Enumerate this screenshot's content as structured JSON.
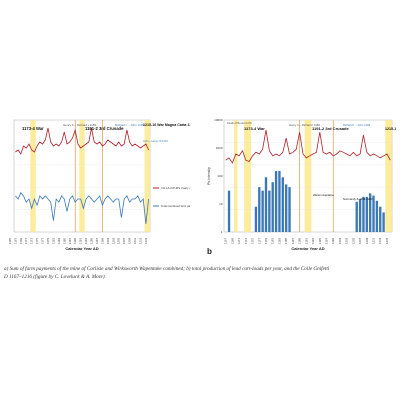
{
  "figure": {
    "panel_a_label": "",
    "panel_b_label": "b",
    "caption_line1": "a) Sum of farm payments of the mine of Carlisle and Wirksworth Wapentake combined; b) total production of lead cart-loads per year, and the Colle Gnifetti",
    "caption_line2": "D 1167–1216 (figure by C. Loveluck & A. More)."
  },
  "chart_data": [
    {
      "type": "line",
      "panel": "a",
      "xlabel": "Calendar Year AD",
      "x_tick_labels": [
        "1165",
        "1167",
        "1169",
        "1171",
        "1173",
        "1175",
        "1177",
        "1179",
        "1181",
        "1183",
        "1185",
        "1187",
        "1189",
        "1191",
        "1193",
        "1195",
        "1197",
        "1199",
        "1201",
        "1203",
        "1205",
        "1207",
        "1209",
        "1211",
        "1213",
        "1215"
      ],
      "annotations": [
        {
          "text": "1173-4 War",
          "year": 1173
        },
        {
          "text": "Henry II – Richard I 1189",
          "year": 1189
        },
        {
          "text": "1191-2 3rd Crusade",
          "year": 1191
        },
        {
          "text": "Richard I – John 1199",
          "year": 1199
        },
        {
          "text": "1215-16 War Magna Carta 1215",
          "year": 1215
        },
        {
          "text": "John – Henry III 1216",
          "year": 1216
        }
      ],
      "shaded_years": [
        1173,
        1174,
        1191,
        1192,
        1215,
        1216
      ],
      "reference_years": [
        1189,
        1199
      ],
      "series": [
        {
          "name": "CG LA-ICP-MS Yearly mean Pb Intensity (Log. scale)",
          "color": "#b0202a",
          "x": [
            1167,
            1168,
            1169,
            1170,
            1171,
            1172,
            1173,
            1174,
            1175,
            1176,
            1177,
            1178,
            1179,
            1180,
            1181,
            1182,
            1183,
            1184,
            1185,
            1186,
            1187,
            1188,
            1189,
            1190,
            1191,
            1192,
            1193,
            1194,
            1195,
            1196,
            1197,
            1198,
            1199,
            1200,
            1201,
            1202,
            1203,
            1204,
            1205,
            1206,
            1207,
            1208,
            1209,
            1210,
            1211,
            1212,
            1213,
            1214,
            1215,
            1216
          ],
          "values": [
            0.35,
            0.4,
            0.3,
            0.5,
            0.45,
            0.55,
            0.4,
            0.35,
            0.5,
            0.6,
            0.55,
            0.65,
            0.95,
            0.6,
            0.5,
            0.55,
            0.5,
            0.6,
            0.85,
            0.55,
            0.6,
            0.7,
            0.9,
            0.55,
            0.45,
            0.5,
            0.55,
            0.6,
            0.95,
            0.6,
            0.55,
            0.6,
            0.5,
            0.55,
            0.65,
            0.6,
            0.55,
            0.5,
            0.6,
            0.5,
            0.55,
            0.9,
            0.6,
            0.5,
            0.55,
            0.5,
            0.45,
            0.5,
            0.55,
            0.4
          ]
        },
        {
          "name": "Total combined farm payments for Carlisle & Wirksworth",
          "color": "#3a78b8",
          "x": [
            1167,
            1168,
            1169,
            1170,
            1171,
            1172,
            1173,
            1174,
            1175,
            1176,
            1177,
            1178,
            1179,
            1180,
            1181,
            1182,
            1183,
            1184,
            1185,
            1186,
            1187,
            1188,
            1189,
            1190,
            1191,
            1192,
            1193,
            1194,
            1195,
            1196,
            1197,
            1198,
            1199,
            1200,
            1201,
            1202,
            1203,
            1204,
            1205,
            1206,
            1207,
            1208,
            1209,
            1210,
            1211,
            1212,
            1213,
            1214,
            1215,
            1216
          ],
          "values": [
            0.55,
            0.5,
            0.6,
            0.55,
            0.45,
            0.5,
            0.35,
            0.5,
            0.4,
            0.55,
            0.5,
            0.55,
            0.5,
            0.45,
            0.15,
            0.5,
            0.45,
            0.55,
            0.5,
            0.3,
            0.5,
            0.55,
            0.45,
            0.5,
            0.5,
            0.35,
            0.5,
            0.55,
            0.5,
            0.45,
            0.5,
            0.55,
            0.4,
            0.5,
            0.55,
            0.5,
            0.45,
            0.5,
            0.5,
            0.2,
            0.5,
            0.55,
            0.45,
            0.5,
            0.5,
            0.55,
            0.45,
            0.5,
            0.1,
            0.5
          ]
        }
      ],
      "legend_position": "right"
    },
    {
      "type": "bar",
      "panel": "b",
      "xlabel": "Calendar Year AD",
      "ylabel": "Pb Intensity",
      "y_scale": "log",
      "ylim": [
        1,
        10000
      ],
      "y_tick_labels": [
        "10000",
        "1000",
        "100",
        "10",
        "1"
      ],
      "x_tick_labels": [
        "1167",
        "1169",
        "1171",
        "1173",
        "1175",
        "1177",
        "1179",
        "1181",
        "1183",
        "1185",
        "1187",
        "1189",
        "1191",
        "1193",
        "1195",
        "1197",
        "1199",
        "1201",
        "1203",
        "1205",
        "1207",
        "1209",
        "1211",
        "1213",
        "1215"
      ],
      "annotations": [
        {
          "text": "Death of Becket 1170",
          "year": 1170
        },
        {
          "text": "1173-4 War",
          "year": 1173
        },
        {
          "text": "Henry II – Richard I 1189",
          "year": 1189
        },
        {
          "text": "1191-2 3rd Crusade",
          "year": 1191
        },
        {
          "text": "Richard I – John 1199",
          "year": 1199
        },
        {
          "text": "1215-16 War, Magna",
          "year": 1215
        },
        {
          "text": "Warsin Aquitaine",
          "year": 1194
        },
        {
          "text": "Normandy & 1194-1203",
          "year": 1198
        }
      ],
      "shaded_years": [
        1170,
        1173,
        1174,
        1191,
        1192,
        1215,
        1216
      ],
      "reference_years": [
        1189,
        1199
      ],
      "series": [
        {
          "name": "Lead production (cart-loads per year)",
          "color": "#3a78b8",
          "x": [
            1167,
            1168,
            1169,
            1170,
            1171,
            1172,
            1173,
            1174,
            1175,
            1176,
            1177,
            1178,
            1179,
            1180,
            1181,
            1182,
            1183,
            1184,
            1185,
            1186,
            1187,
            1188,
            1189,
            1190,
            1191,
            1192,
            1193,
            1194,
            1195,
            1196,
            1197,
            1198,
            1199,
            1200,
            1201,
            1202,
            1203,
            1204,
            1205,
            1206,
            1207,
            1208,
            1209,
            1210,
            1211,
            1212,
            1213,
            1214,
            1215,
            1216
          ],
          "values": [
            null,
            30,
            null,
            null,
            null,
            null,
            null,
            null,
            null,
            8,
            40,
            30,
            90,
            30,
            60,
            150,
            150,
            90,
            50,
            40,
            null,
            null,
            null,
            null,
            null,
            null,
            null,
            null,
            null,
            null,
            null,
            null,
            null,
            null,
            null,
            null,
            null,
            null,
            null,
            12,
            15,
            18,
            18,
            24,
            20,
            13,
            8,
            5,
            null,
            null
          ]
        },
        {
          "name": "CG LA-ICP-MS Pb Intensity",
          "color": "#b0202a",
          "x": [
            1167,
            1168,
            1169,
            1170,
            1171,
            1172,
            1173,
            1174,
            1175,
            1176,
            1177,
            1178,
            1179,
            1180,
            1181,
            1182,
            1183,
            1184,
            1185,
            1186,
            1187,
            1188,
            1189,
            1190,
            1191,
            1192,
            1193,
            1194,
            1195,
            1196,
            1197,
            1198,
            1199,
            1200,
            1201,
            1202,
            1203,
            1204,
            1205,
            1206,
            1207,
            1208,
            1209,
            1210,
            1211,
            1212,
            1213,
            1214,
            1215,
            1216
          ],
          "values": [
            700,
            800,
            600,
            1000,
            900,
            1200,
            700,
            650,
            900,
            1100,
            1000,
            1300,
            4000,
            1200,
            900,
            1000,
            900,
            1100,
            2500,
            1000,
            1100,
            1300,
            3500,
            1000,
            800,
            900,
            1000,
            1100,
            3500,
            1100,
            1000,
            1100,
            900,
            1000,
            1200,
            1100,
            1000,
            900,
            1100,
            900,
            1000,
            3000,
            1100,
            900,
            1000,
            900,
            800,
            900,
            1000,
            700
          ]
        }
      ],
      "legend_position": "none"
    }
  ]
}
